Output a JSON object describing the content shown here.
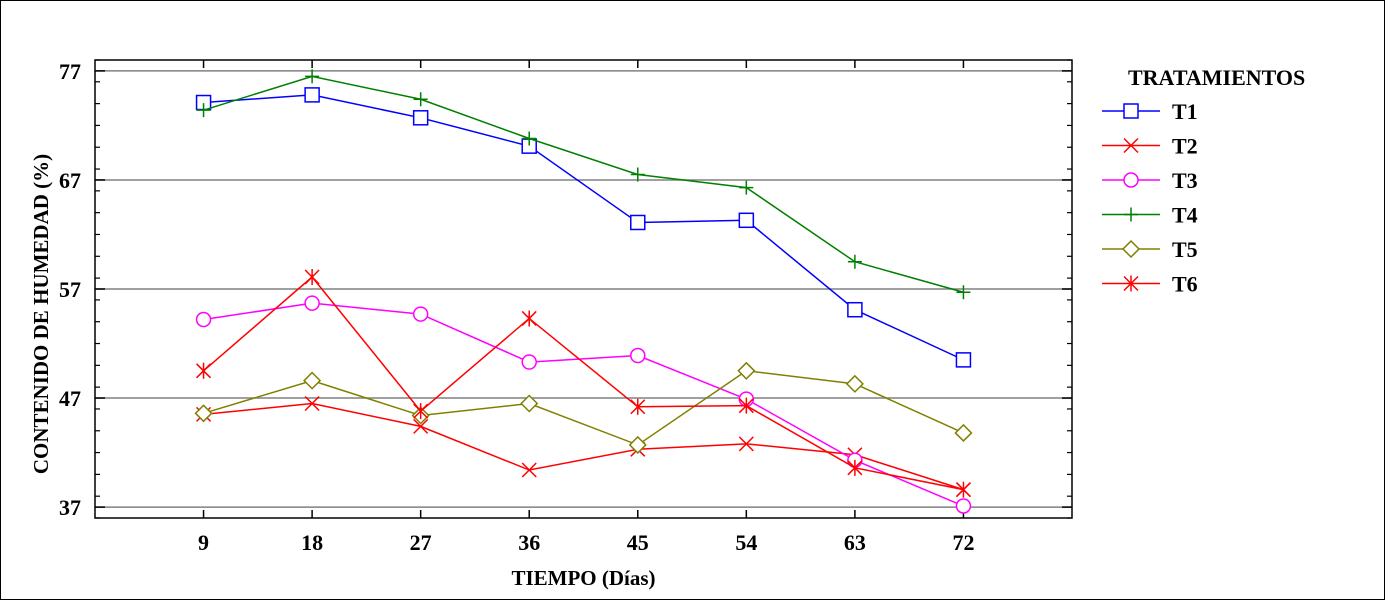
{
  "chart_data": {
    "type": "line",
    "xlabel": "TIEMPO (Días)",
    "ylabel": "CONTENIDO  DE  HUMEDAD (%)",
    "x": [
      9,
      18,
      27,
      36,
      45,
      54,
      63,
      72
    ],
    "x_tick_labels": [
      "9",
      "18",
      "27",
      "36",
      "45",
      "54",
      "63",
      "72"
    ],
    "xlim": [
      0,
      81
    ],
    "ylim": [
      36,
      78
    ],
    "y_tick_labels": [
      "77",
      "67",
      "57",
      "47",
      "37"
    ],
    "y_ticks": [
      77,
      67,
      57,
      47,
      37
    ],
    "grid": "horizontal",
    "legend": {
      "title": "TRATAMIENTOS",
      "position": "right"
    },
    "series": [
      {
        "name": "T1",
        "color": "#0000ff",
        "marker": "square",
        "values": [
          74.1,
          74.8,
          72.7,
          70.1,
          63.1,
          63.3,
          55.1,
          50.5
        ]
      },
      {
        "name": "T2",
        "color": "#ff0000",
        "marker": "x",
        "values": [
          45.5,
          46.5,
          44.4,
          40.4,
          42.3,
          42.8,
          41.8,
          38.6
        ]
      },
      {
        "name": "T3",
        "color": "#ff00ff",
        "marker": "circle",
        "values": [
          54.2,
          55.7,
          54.7,
          50.3,
          50.9,
          46.9,
          41.3,
          37.1
        ]
      },
      {
        "name": "T4",
        "color": "#008000",
        "marker": "plus",
        "values": [
          73.4,
          76.5,
          74.4,
          70.8,
          67.5,
          66.3,
          59.5,
          56.7
        ]
      },
      {
        "name": "T5",
        "color": "#808000",
        "marker": "diamond",
        "values": [
          45.6,
          48.6,
          45.4,
          46.5,
          42.7,
          49.5,
          48.3,
          43.8
        ]
      },
      {
        "name": "T6",
        "color": "#ff0000",
        "marker": "asterisk",
        "values": [
          49.5,
          58.1,
          45.8,
          54.3,
          46.2,
          46.3,
          40.6,
          38.6
        ]
      }
    ]
  }
}
